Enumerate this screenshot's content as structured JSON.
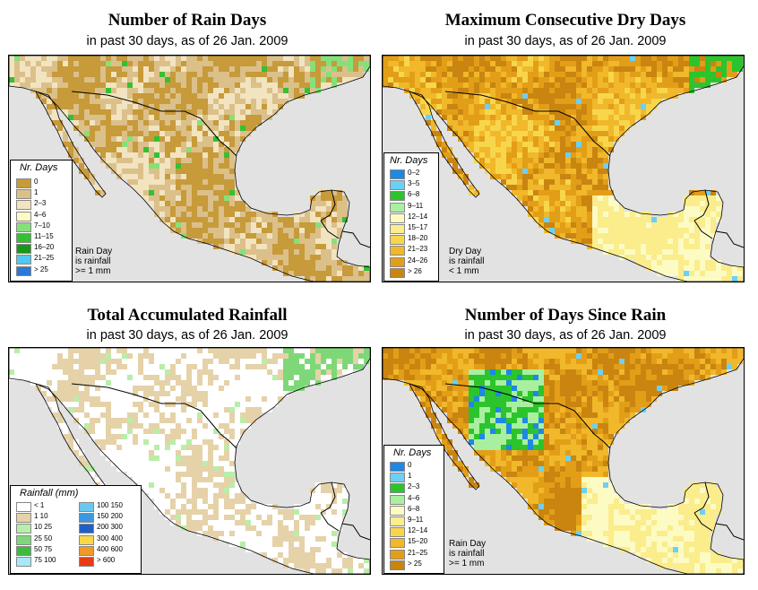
{
  "panels": [
    {
      "title": "Number of Rain Days",
      "subtitle": "in past 30 days, as of  26 Jan. 2009",
      "scheme": "raindays",
      "legend": {
        "title": "Nr. Days",
        "items": [
          {
            "label": "0",
            "color": "#c79a3a"
          },
          {
            "label": "1",
            "color": "#dcc08a"
          },
          {
            "label": "2–3",
            "color": "#f2e4c0"
          },
          {
            "label": "4–6",
            "color": "#fcfbc8"
          },
          {
            "label": "7–10",
            "color": "#86e07a"
          },
          {
            "label": "11–15",
            "color": "#34c034"
          },
          {
            "label": "16–20",
            "color": "#189818"
          },
          {
            "label": "21–25",
            "color": "#50c8f0"
          },
          {
            "label": "> 25",
            "color": "#2c78d4"
          }
        ]
      },
      "note": [
        "Rain Day",
        "is rainfall",
        ">= 1 mm"
      ]
    },
    {
      "title": "Maximum Consecutive Dry Days",
      "subtitle": "in past 30 days, as of  26 Jan. 2009",
      "scheme": "drydays",
      "legend": {
        "title": "Nr. Days",
        "items": [
          {
            "label": "0–2",
            "color": "#1e88e5"
          },
          {
            "label": "3–5",
            "color": "#6cd0f5"
          },
          {
            "label": "6–8",
            "color": "#2cc42c"
          },
          {
            "label": "9–11",
            "color": "#a8f0a0"
          },
          {
            "label": "12–14",
            "color": "#fdfbc4"
          },
          {
            "label": "15–17",
            "color": "#fbec8c"
          },
          {
            "label": "18–20",
            "color": "#f8d64c"
          },
          {
            "label": "21–23",
            "color": "#f0b82a"
          },
          {
            "label": "24–26",
            "color": "#e39e18"
          },
          {
            "label": "> 26",
            "color": "#c98510"
          }
        ]
      },
      "note": [
        "Dry Day",
        "is rainfall",
        "< 1 mm"
      ]
    },
    {
      "title": "Total Accumulated Rainfall",
      "subtitle": "in past 30 days, as of  26 Jan. 2009",
      "scheme": "rainfall",
      "legend": {
        "title": "Rainfall (mm)",
        "items": [
          {
            "label": "< 1",
            "color": "#ffffff"
          },
          {
            "label": "1   10",
            "color": "#e6d2a8"
          },
          {
            "label": "10   25",
            "color": "#b8eea8"
          },
          {
            "label": "25   50",
            "color": "#7ed878"
          },
          {
            "label": "50   75",
            "color": "#3cbc3c"
          },
          {
            "label": "75   100",
            "color": "#a8e8f8"
          },
          {
            "label": "100  150",
            "color": "#68c8f0"
          },
          {
            "label": "150  200",
            "color": "#3c98e0"
          },
          {
            "label": "200  300",
            "color": "#1e60c8"
          },
          {
            "label": "300  400",
            "color": "#f8d848"
          },
          {
            "label": "400  600",
            "color": "#f09828"
          },
          {
            "label": "> 600",
            "color": "#e83c14"
          }
        ]
      },
      "note": []
    },
    {
      "title": "Number of Days Since Rain",
      "subtitle": "in past 30 days, as of  26 Jan. 2009",
      "scheme": "sincerain",
      "legend": {
        "title": "Nr. Days",
        "items": [
          {
            "label": "0",
            "color": "#1e88e5"
          },
          {
            "label": "1",
            "color": "#6cd0f5"
          },
          {
            "label": "2–3",
            "color": "#2cc42c"
          },
          {
            "label": "4–6",
            "color": "#a8f0a0"
          },
          {
            "label": "6–8",
            "color": "#fdfbc4"
          },
          {
            "label": "9–11",
            "color": "#fbec8c"
          },
          {
            "label": "12–14",
            "color": "#f8d64c"
          },
          {
            "label": "15–20",
            "color": "#f0b82a"
          },
          {
            "label": "21–25",
            "color": "#e39e18"
          },
          {
            "label": "> 25",
            "color": "#c98510"
          }
        ]
      },
      "note": [
        "Rain Day",
        "is rainfall",
        ">= 1 mm"
      ]
    }
  ],
  "colors": {
    "sea": "#e2e2e2",
    "border": "#000000"
  }
}
